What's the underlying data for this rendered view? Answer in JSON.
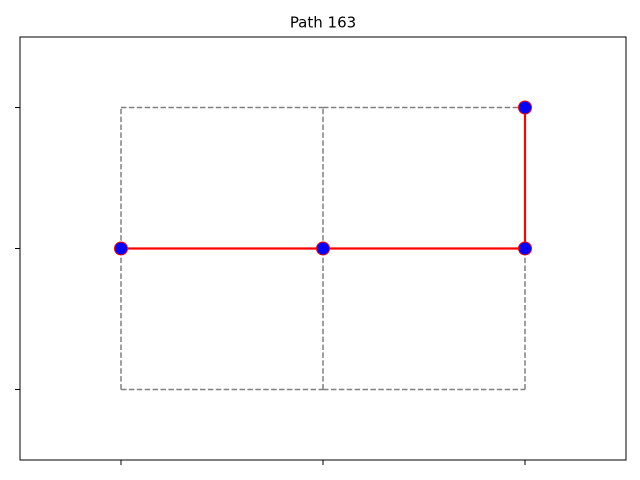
{
  "chart_data": {
    "type": "path",
    "title": "Path 163",
    "xlim": [
      -0.5,
      2.5
    ],
    "ylim": [
      -0.5,
      2.5
    ],
    "xticks": [
      0,
      1,
      2
    ],
    "yticks": [
      0,
      1,
      2
    ],
    "edge_color": "#808080",
    "edges": [
      [
        0,
        0,
        1,
        0
      ],
      [
        1,
        0,
        2,
        0
      ],
      [
        0,
        1,
        1,
        1
      ],
      [
        1,
        1,
        2,
        1
      ],
      [
        0,
        2,
        1,
        2
      ],
      [
        1,
        2,
        2,
        2
      ],
      [
        0,
        0,
        0,
        1
      ],
      [
        0,
        1,
        0,
        2
      ],
      [
        1,
        0,
        1,
        1
      ],
      [
        1,
        1,
        1,
        2
      ],
      [
        2,
        0,
        2,
        1
      ],
      [
        2,
        1,
        2,
        2
      ]
    ],
    "series": [
      {
        "color": "#ff0000",
        "marker_color": "#0000ff",
        "x": [
          0,
          1,
          2,
          2
        ],
        "values": [
          1,
          1,
          1,
          2
        ]
      }
    ]
  }
}
